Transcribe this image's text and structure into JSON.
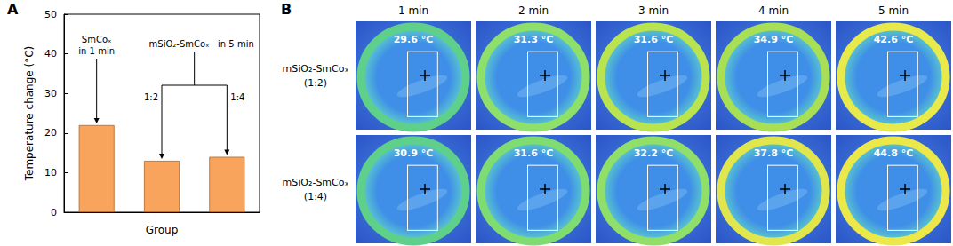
{
  "chart_data": {
    "type": "bar",
    "panel_label": "A",
    "y_label": "Temperature change (°C)",
    "x_label": "Group",
    "categories": [
      null,
      null,
      null
    ],
    "values": [
      22,
      13,
      14
    ],
    "color": "#f8a45c",
    "ylim": [
      0,
      50
    ],
    "yticks": [
      0,
      10,
      20,
      30,
      40,
      50
    ],
    "grid": false,
    "data_labels": false,
    "annotations": [
      "SmCoₓ\nin 1 min",
      "mSiO₂-SmCoₓ   in 5 min",
      "1:2",
      "1:4"
    ]
  },
  "panel_b": {
    "panel_label": "B",
    "columns": [
      "1 min",
      "2 min",
      "3 min",
      "4 min",
      "5 min"
    ],
    "rows": [
      {
        "label": "mSiO₂-SmCoₓ\n(1:2)",
        "temperatures": [
          "29.6 °C",
          "31.3 °C",
          "31.6 °C",
          "34.9 °C",
          "42.6 °C"
        ]
      },
      {
        "label": "mSiO₂-SmCoₓ\n(1:4)",
        "temperatures": [
          "30.9 °C",
          "31.6 °C",
          "32.2 °C",
          "37.8 °C",
          "44.8 °C"
        ]
      }
    ]
  }
}
